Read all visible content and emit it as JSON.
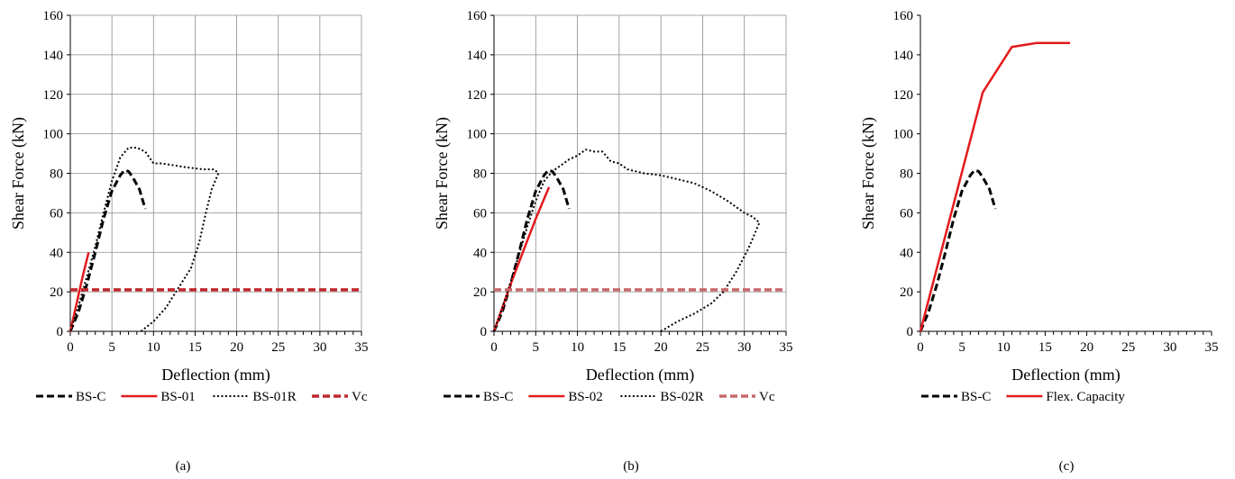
{
  "chart_data": [
    {
      "type": "line",
      "panel_label": "(a)",
      "xlabel": "Deflection (mm)",
      "ylabel": "Shear Force (kN)",
      "xlim": [
        0,
        35
      ],
      "ylim": [
        0,
        160
      ],
      "x_ticks": [
        "0",
        "5",
        "10",
        "15",
        "20",
        "25",
        "30",
        "35"
      ],
      "y_ticks": [
        "0",
        "20",
        "40",
        "60",
        "80",
        "100",
        "120",
        "140",
        "160"
      ],
      "grid": true,
      "legend_position": "bottom",
      "series": [
        {
          "name": "BS-C",
          "style": "dashed",
          "color": "#000000",
          "points": [
            [
              0,
              0
            ],
            [
              1,
              10
            ],
            [
              2,
              24
            ],
            [
              3,
              40
            ],
            [
              4,
              57
            ],
            [
              5,
              71
            ],
            [
              6,
              79
            ],
            [
              6.5,
              81.5
            ],
            [
              7,
              81
            ],
            [
              7.5,
              78
            ],
            [
              8.3,
              72
            ],
            [
              9,
              62
            ]
          ]
        },
        {
          "name": "BS-01",
          "style": "solid",
          "color": "#e41a1c",
          "points": [
            [
              0,
              0
            ],
            [
              0.8,
              15
            ],
            [
              1.5,
              28
            ],
            [
              2.2,
              40
            ]
          ]
        },
        {
          "name": "BS-01R",
          "style": "dotted",
          "color": "#000000",
          "points": [
            [
              8.5,
              0
            ],
            [
              10,
              5
            ],
            [
              11.5,
              12
            ],
            [
              13,
              22
            ],
            [
              14.5,
              32
            ],
            [
              15.5,
              45
            ],
            [
              16.3,
              60
            ],
            [
              17,
              72
            ],
            [
              17.8,
              80
            ],
            [
              17.3,
              82
            ],
            [
              16,
              82
            ],
            [
              14,
              83
            ],
            [
              12.5,
              84
            ],
            [
              11,
              85
            ],
            [
              10,
              85
            ],
            [
              9,
              91
            ],
            [
              8,
              93
            ],
            [
              7,
              93
            ],
            [
              6,
              88
            ],
            [
              5,
              76
            ],
            [
              4,
              60
            ],
            [
              3,
              43
            ],
            [
              2,
              28
            ],
            [
              1,
              13
            ],
            [
              0,
              0
            ]
          ]
        },
        {
          "name": "Vc",
          "style": "dashed-thick",
          "color": "#c0282d",
          "points": [
            [
              0,
              21
            ],
            [
              35,
              21
            ]
          ]
        }
      ]
    },
    {
      "type": "line",
      "panel_label": "(b)",
      "xlabel": "Deflection (mm)",
      "ylabel": "Shear Force (kN)",
      "xlim": [
        0,
        35
      ],
      "ylim": [
        0,
        160
      ],
      "x_ticks": [
        "0",
        "5",
        "10",
        "15",
        "20",
        "25",
        "30",
        "35"
      ],
      "y_ticks": [
        "0",
        "20",
        "40",
        "60",
        "80",
        "100",
        "120",
        "140",
        "160"
      ],
      "grid": true,
      "legend_position": "bottom",
      "series": [
        {
          "name": "BS-C",
          "style": "dashed",
          "color": "#000000",
          "points": [
            [
              0,
              0
            ],
            [
              1,
              10
            ],
            [
              2,
              24
            ],
            [
              3,
              40
            ],
            [
              4,
              57
            ],
            [
              5,
              71
            ],
            [
              6,
              79
            ],
            [
              6.5,
              81.5
            ],
            [
              7,
              81
            ],
            [
              7.5,
              78
            ],
            [
              8.3,
              72
            ],
            [
              9,
              62
            ]
          ]
        },
        {
          "name": "BS-02",
          "style": "solid",
          "color": "#e41a1c",
          "points": [
            [
              0,
              0
            ],
            [
              1,
              12
            ],
            [
              2,
              24
            ],
            [
              3,
              35
            ],
            [
              4,
              46
            ],
            [
              5,
              57
            ],
            [
              6,
              67
            ],
            [
              6.6,
              73
            ]
          ]
        },
        {
          "name": "BS-02R",
          "style": "dotted",
          "color": "#000000",
          "points": [
            [
              20,
              0
            ],
            [
              22,
              5
            ],
            [
              24,
              9
            ],
            [
              26,
              14
            ],
            [
              27.5,
              20
            ],
            [
              29,
              30
            ],
            [
              30.5,
              42
            ],
            [
              31.8,
              55
            ],
            [
              31,
              58
            ],
            [
              30,
              60
            ],
            [
              28,
              66
            ],
            [
              26,
              71
            ],
            [
              24,
              75
            ],
            [
              22,
              77
            ],
            [
              20,
              79
            ],
            [
              18,
              80
            ],
            [
              16,
              82
            ],
            [
              15,
              85
            ],
            [
              14,
              86
            ],
            [
              13,
              91
            ],
            [
              12,
              91
            ],
            [
              11,
              92
            ],
            [
              10,
              89
            ],
            [
              9,
              87
            ],
            [
              8,
              84
            ],
            [
              7,
              81
            ],
            [
              6,
              76
            ],
            [
              5,
              66
            ],
            [
              4,
              53
            ],
            [
              3,
              39
            ],
            [
              2,
              25
            ],
            [
              1,
              12
            ],
            [
              0,
              0
            ]
          ]
        },
        {
          "name": "Vc",
          "style": "dashed-thick",
          "color": "#c8696c",
          "points": [
            [
              0,
              21
            ],
            [
              35,
              21
            ]
          ]
        }
      ]
    },
    {
      "type": "line",
      "panel_label": "(c)",
      "xlabel": "Deflection (mm)",
      "ylabel": "Shear Force (kN)",
      "xlim": [
        0,
        35
      ],
      "ylim": [
        0,
        160
      ],
      "x_ticks": [
        "0",
        "5",
        "10",
        "15",
        "20",
        "25",
        "30",
        "35"
      ],
      "y_ticks": [
        "0",
        "20",
        "40",
        "60",
        "80",
        "100",
        "120",
        "140",
        "160"
      ],
      "grid": false,
      "legend_position": "bottom",
      "series": [
        {
          "name": "BS-C",
          "style": "dashed",
          "color": "#000000",
          "points": [
            [
              0,
              0
            ],
            [
              1,
              10
            ],
            [
              2,
              24
            ],
            [
              3,
              40
            ],
            [
              4,
              57
            ],
            [
              5,
              71
            ],
            [
              6,
              79
            ],
            [
              6.5,
              81.5
            ],
            [
              7,
              81
            ],
            [
              7.5,
              78
            ],
            [
              8.3,
              72
            ],
            [
              9,
              62
            ]
          ]
        },
        {
          "name": "Flex. Capacity",
          "style": "solid",
          "color": "#e41a1c",
          "points": [
            [
              0,
              0
            ],
            [
              7.5,
              121
            ],
            [
              11,
              144
            ],
            [
              14,
              146
            ],
            [
              18,
              146
            ]
          ]
        }
      ]
    }
  ]
}
